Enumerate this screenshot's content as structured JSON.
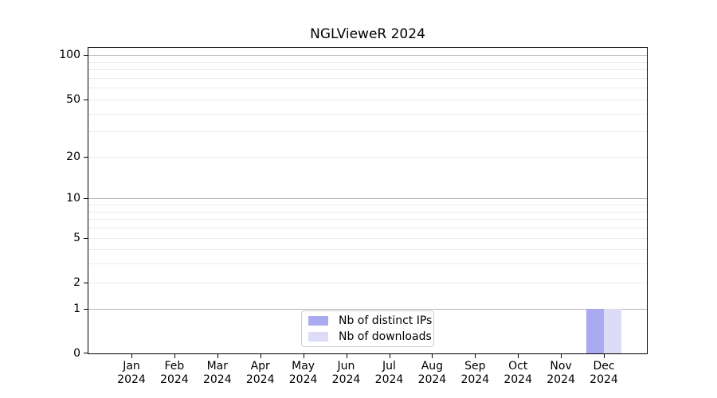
{
  "chart_data": {
    "type": "bar",
    "title": "NGLVieweR 2024",
    "x_tick_months": [
      "Jan",
      "Feb",
      "Mar",
      "Apr",
      "May",
      "Jun",
      "Jul",
      "Aug",
      "Sep",
      "Oct",
      "Nov",
      "Dec"
    ],
    "x_tick_year": "2024",
    "yscale": "log1p",
    "ylim": [
      0,
      112
    ],
    "yticks": [
      0,
      1,
      2,
      5,
      10,
      20,
      50,
      100
    ],
    "major_gridlines": [
      1,
      10,
      100
    ],
    "minor_gridlines": [
      2,
      3,
      4,
      5,
      6,
      7,
      8,
      9,
      20,
      30,
      40,
      50,
      60,
      70,
      80,
      90
    ],
    "grid": "on",
    "legend_position": "lower center",
    "series": [
      {
        "name": "Nb of distinct IPs",
        "color": "#aaaaf0",
        "values": [
          0,
          0,
          0,
          0,
          0,
          0,
          0,
          0,
          0,
          0,
          0,
          1
        ]
      },
      {
        "name": "Nb of downloads",
        "color": "#dcdcf7",
        "values": [
          0,
          0,
          0,
          0,
          0,
          0,
          0,
          0,
          0,
          0,
          0,
          1
        ]
      }
    ]
  }
}
